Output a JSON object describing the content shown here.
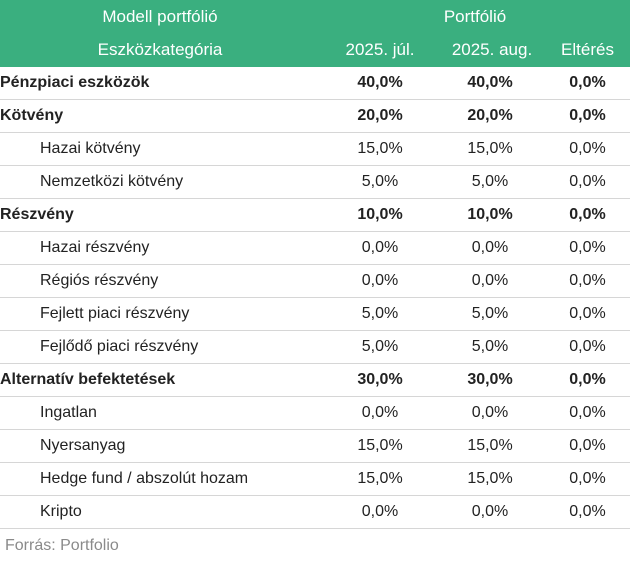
{
  "header": {
    "left_top": "Modell portfólió",
    "right_top": "Portfólió",
    "left_bottom": "Eszközkategória",
    "col_jul": "2025. júl.",
    "col_aug": "2025. aug.",
    "col_diff": "Eltérés"
  },
  "rows": [
    {
      "label": "Pénzpiaci eszközök",
      "jul": "40,0%",
      "aug": "40,0%",
      "diff": "0,0%"
    },
    {
      "label": "Kötvény",
      "jul": "20,0%",
      "aug": "20,0%",
      "diff": "0,0%"
    },
    {
      "label": "Hazai kötvény",
      "jul": "15,0%",
      "aug": "15,0%",
      "diff": "0,0%"
    },
    {
      "label": "Nemzetközi kötvény",
      "jul": "5,0%",
      "aug": "5,0%",
      "diff": "0,0%"
    },
    {
      "label": "Részvény",
      "jul": "10,0%",
      "aug": "10,0%",
      "diff": "0,0%"
    },
    {
      "label": "Hazai részvény",
      "jul": "0,0%",
      "aug": "0,0%",
      "diff": "0,0%"
    },
    {
      "label": "Régiós részvény",
      "jul": "0,0%",
      "aug": "0,0%",
      "diff": "0,0%"
    },
    {
      "label": "Fejlett piaci részvény",
      "jul": "5,0%",
      "aug": "5,0%",
      "diff": "0,0%"
    },
    {
      "label": "Fejlődő piaci részvény",
      "jul": "5,0%",
      "aug": "5,0%",
      "diff": "0,0%"
    },
    {
      "label": "Alternatív befektetések",
      "jul": "30,0%",
      "aug": "30,0%",
      "diff": "0,0%"
    },
    {
      "label": "Ingatlan",
      "jul": "0,0%",
      "aug": "0,0%",
      "diff": "0,0%"
    },
    {
      "label": "Nyersanyag",
      "jul": "15,0%",
      "aug": "15,0%",
      "diff": "0,0%"
    },
    {
      "label": "Hedge fund / abszolút hozam",
      "jul": "15,0%",
      "aug": "15,0%",
      "diff": "0,0%"
    },
    {
      "label": "Kripto",
      "jul": "0,0%",
      "aug": "0,0%",
      "diff": "0,0%"
    }
  ],
  "source": "Forrás: Portfolio",
  "colors": {
    "header_bg": "#3aaf7f",
    "header_text": "#ffffff",
    "grid": "#d6d6d6"
  }
}
